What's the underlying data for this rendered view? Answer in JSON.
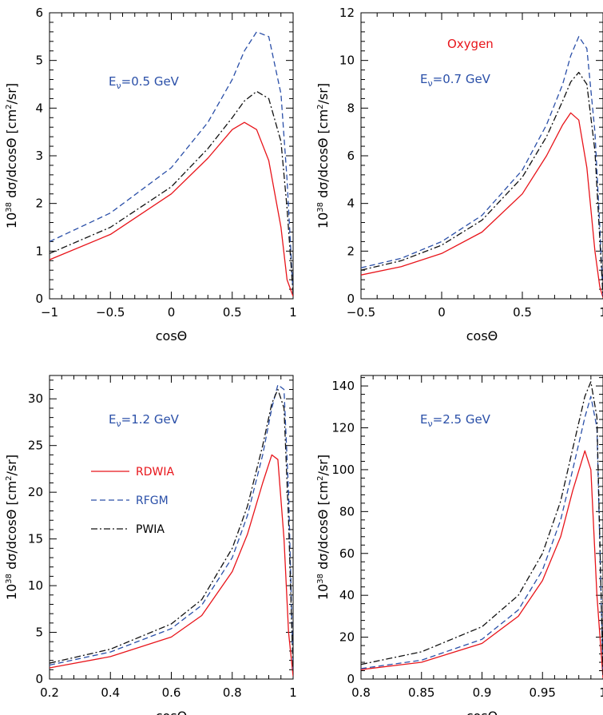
{
  "colors": {
    "rdwia": "#e8141a",
    "rfgm": "#2a4fa8",
    "pwia": "#111111",
    "energy_label": "#2a4fa8",
    "nucleus_label": "#e8141a"
  },
  "chart_data": [
    {
      "type": "line",
      "xlabel": "cosΘ",
      "ylabel": "10³⁸ dσ/dcosΘ [cm²/sr]",
      "xlim": [
        -1,
        1
      ],
      "ylim": [
        0,
        6
      ],
      "xticks": [
        "−1",
        "−0.5",
        "0",
        "0.5",
        "1"
      ],
      "yticks": [
        "0",
        "1",
        "2",
        "3",
        "4",
        "5",
        "6"
      ],
      "annotation": "Eν=0.5 GeV",
      "series": [
        {
          "name": "RDWIA",
          "style": "solid",
          "x": [
            -1,
            -0.5,
            0,
            0.3,
            0.5,
            0.6,
            0.7,
            0.8,
            0.9,
            0.95,
            1
          ],
          "y": [
            0.82,
            1.35,
            2.2,
            2.95,
            3.55,
            3.7,
            3.55,
            2.9,
            1.5,
            0.4,
            0.05
          ]
        },
        {
          "name": "RFGM",
          "style": "dashed",
          "x": [
            -1,
            -0.5,
            0,
            0.3,
            0.5,
            0.6,
            0.7,
            0.8,
            0.9,
            0.95,
            1
          ],
          "y": [
            1.2,
            1.8,
            2.75,
            3.7,
            4.6,
            5.2,
            5.6,
            5.5,
            4.3,
            2.5,
            0.1
          ]
        },
        {
          "name": "PWIA",
          "style": "dashdot",
          "x": [
            -1,
            -0.5,
            0,
            0.3,
            0.5,
            0.6,
            0.7,
            0.8,
            0.9,
            0.95,
            1
          ],
          "y": [
            0.95,
            1.5,
            2.35,
            3.15,
            3.8,
            4.15,
            4.35,
            4.2,
            3.3,
            1.9,
            0.1
          ]
        }
      ]
    },
    {
      "type": "line",
      "xlabel": "cosΘ",
      "ylabel": "10³⁸ dσ/dcosΘ [cm²/sr]",
      "xlim": [
        -0.5,
        1
      ],
      "ylim": [
        0,
        12
      ],
      "xticks": [
        "−0.5",
        "0",
        "0.5",
        "1"
      ],
      "yticks": [
        "0",
        "2",
        "4",
        "6",
        "8",
        "10",
        "12"
      ],
      "annotation": "Eν=0.7 GeV",
      "nucleus": "Oxygen",
      "series": [
        {
          "name": "RDWIA",
          "style": "solid",
          "x": [
            -0.5,
            -0.25,
            0,
            0.25,
            0.5,
            0.65,
            0.75,
            0.8,
            0.85,
            0.9,
            0.95,
            0.98,
            1
          ],
          "y": [
            1.0,
            1.35,
            1.9,
            2.8,
            4.4,
            6.0,
            7.3,
            7.8,
            7.5,
            5.5,
            2.0,
            0.5,
            0.05
          ]
        },
        {
          "name": "RFGM",
          "style": "dashed",
          "x": [
            -0.5,
            -0.25,
            0,
            0.25,
            0.5,
            0.65,
            0.75,
            0.8,
            0.85,
            0.9,
            0.95,
            0.98,
            1
          ],
          "y": [
            1.3,
            1.7,
            2.4,
            3.5,
            5.4,
            7.3,
            9.0,
            10.2,
            11.0,
            10.5,
            7.0,
            3.0,
            0.1
          ]
        },
        {
          "name": "PWIA",
          "style": "dashdot",
          "x": [
            -0.5,
            -0.25,
            0,
            0.25,
            0.5,
            0.65,
            0.75,
            0.8,
            0.85,
            0.9,
            0.95,
            0.98,
            1
          ],
          "y": [
            1.2,
            1.6,
            2.25,
            3.3,
            5.1,
            6.8,
            8.3,
            9.1,
            9.5,
            9.0,
            6.2,
            2.5,
            0.1
          ]
        }
      ]
    },
    {
      "type": "line",
      "xlabel": "cosΘ",
      "ylabel": "10³⁸ dσ/dcosΘ [cm²/sr]",
      "xlim": [
        0.2,
        1
      ],
      "ylim": [
        0,
        32.5
      ],
      "xticks": [
        "0.2",
        "0.4",
        "0.6",
        "0.8",
        "1"
      ],
      "yticks": [
        "0",
        "5",
        "10",
        "15",
        "20",
        "25",
        "30"
      ],
      "annotation": "Eν=1.2 GeV",
      "legend": [
        "RDWIA",
        "RFGM",
        "PWIA"
      ],
      "series": [
        {
          "name": "RDWIA",
          "style": "solid",
          "x": [
            0.2,
            0.4,
            0.6,
            0.7,
            0.8,
            0.85,
            0.9,
            0.93,
            0.95,
            0.97,
            0.985,
            1
          ],
          "y": [
            1.2,
            2.4,
            4.5,
            6.8,
            11.5,
            15.5,
            21.0,
            24.0,
            23.5,
            15.0,
            5.0,
            0.3
          ]
        },
        {
          "name": "RFGM",
          "style": "dashed",
          "x": [
            0.2,
            0.4,
            0.6,
            0.7,
            0.8,
            0.85,
            0.9,
            0.93,
            0.95,
            0.97,
            0.985,
            1
          ],
          "y": [
            1.5,
            2.9,
            5.4,
            7.9,
            13.0,
            17.5,
            24.0,
            29.0,
            31.5,
            31.0,
            20.0,
            1.0
          ]
        },
        {
          "name": "PWIA",
          "style": "dashdot",
          "x": [
            0.2,
            0.4,
            0.6,
            0.7,
            0.8,
            0.85,
            0.9,
            0.93,
            0.95,
            0.97,
            0.985,
            1
          ],
          "y": [
            1.7,
            3.2,
            5.9,
            8.5,
            14.0,
            18.5,
            25.0,
            29.5,
            31.0,
            29.0,
            17.0,
            0.8
          ]
        }
      ]
    },
    {
      "type": "line",
      "xlabel": "cosΘ",
      "ylabel": "10³⁸ dσ/dcosΘ [cm²/sr]",
      "xlim": [
        0.8,
        1
      ],
      "ylim": [
        0,
        145
      ],
      "xticks": [
        "0.8",
        "0.85",
        "0.9",
        "0.95",
        "1"
      ],
      "yticks": [
        "0",
        "20",
        "40",
        "60",
        "80",
        "100",
        "120",
        "140"
      ],
      "annotation": "Eν=2.5 GeV",
      "series": [
        {
          "name": "RDWIA",
          "style": "solid",
          "x": [
            0.8,
            0.85,
            0.9,
            0.93,
            0.95,
            0.965,
            0.975,
            0.985,
            0.99,
            0.995,
            1
          ],
          "y": [
            4.5,
            8,
            17,
            30,
            47,
            68,
            90,
            109,
            100,
            40,
            0.5
          ]
        },
        {
          "name": "RFGM",
          "style": "dashed",
          "x": [
            0.8,
            0.85,
            0.9,
            0.93,
            0.95,
            0.965,
            0.975,
            0.985,
            0.99,
            0.995,
            1
          ],
          "y": [
            5,
            9,
            19,
            33,
            52,
            76,
            100,
            125,
            135,
            120,
            2
          ]
        },
        {
          "name": "PWIA",
          "style": "dashdot",
          "x": [
            0.8,
            0.85,
            0.9,
            0.93,
            0.95,
            0.965,
            0.975,
            0.985,
            0.99,
            0.995,
            1
          ],
          "y": [
            7,
            13,
            25,
            40,
            60,
            85,
            110,
            135,
            142,
            125,
            2
          ]
        }
      ]
    }
  ]
}
